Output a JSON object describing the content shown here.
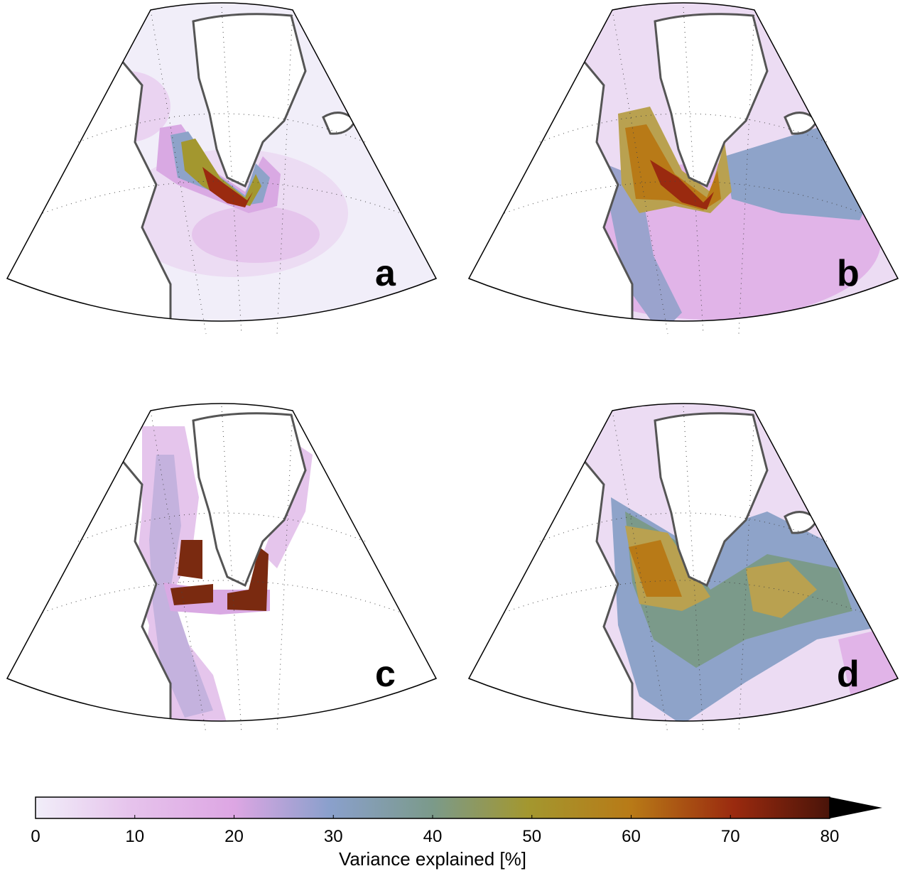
{
  "panels": [
    {
      "id": "a",
      "label": "a"
    },
    {
      "id": "b",
      "label": "b"
    },
    {
      "id": "c",
      "label": "c"
    },
    {
      "id": "d",
      "label": "d"
    }
  ],
  "colorbar": {
    "title": "Variance explained [%]",
    "ticks": [
      "0",
      "10",
      "20",
      "30",
      "40",
      "50",
      "60",
      "70",
      "80"
    ],
    "min": 0,
    "max": 80,
    "extend": "max",
    "colors": [
      "#f1eef9",
      "#e6c3ec",
      "#dda6e3",
      "#8aa0cc",
      "#7b9a8a",
      "#a3972f",
      "#b87a17",
      "#9a2a0f",
      "#4a1409"
    ]
  },
  "legend_placement": "bottom"
}
